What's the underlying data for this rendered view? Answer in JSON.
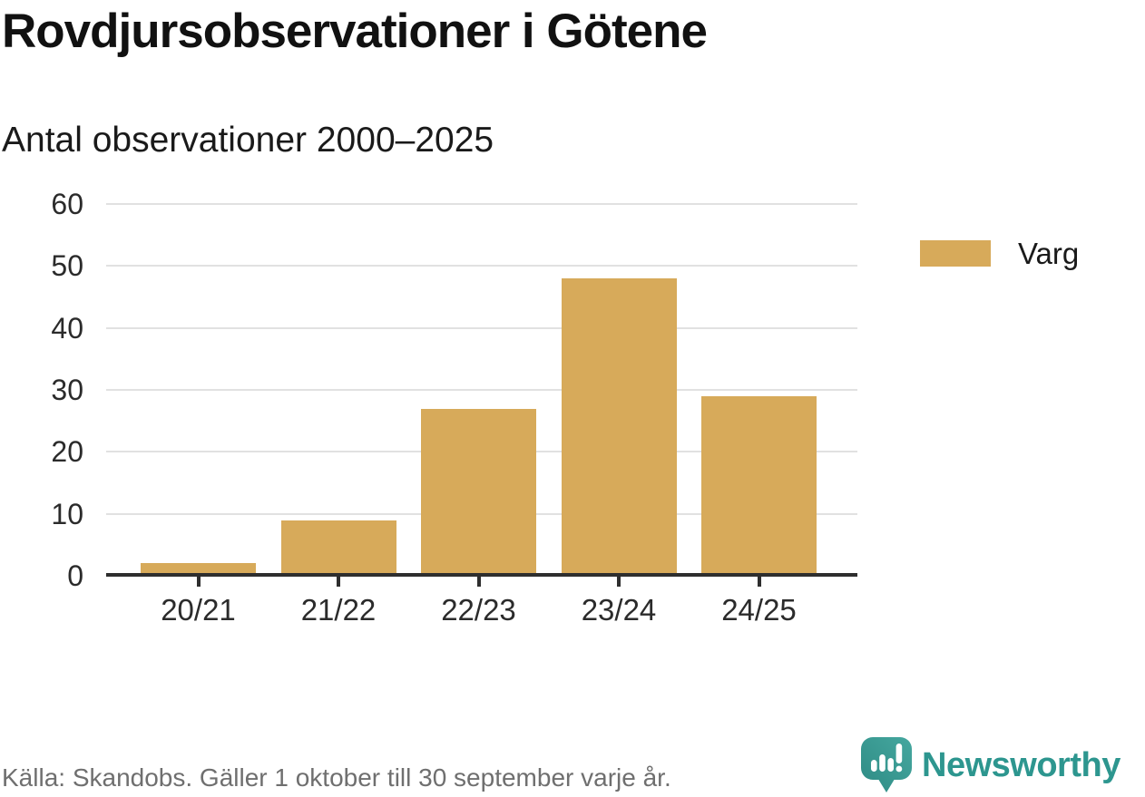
{
  "header": {
    "title": "Rovdjursobservationer i Götene",
    "subtitle": "Antal observationer 2000–2025"
  },
  "legend": {
    "label": "Varg"
  },
  "footer": {
    "source": "Källa: Skandobs. Gäller 1 oktober till 30 september varje år.",
    "brand": "Newsworthy"
  },
  "colors": {
    "bar": "#d7aa5a",
    "gridline": "#e1e1e1",
    "axis": "#2e2e2e",
    "brand_teal": "#2d968f",
    "brand_teal_light": "#45a79f",
    "brand_teal_dark": "#2e8b84",
    "footer_text": "#6f6f6f"
  },
  "chart_data": {
    "type": "bar",
    "title": "Rovdjursobservationer i Götene",
    "subtitle": "Antal observationer 2000–2025",
    "categories": [
      "20/21",
      "21/22",
      "22/23",
      "23/24",
      "24/25"
    ],
    "series": [
      {
        "name": "Varg",
        "color": "#d7aa5a",
        "values": [
          2,
          9,
          27,
          48,
          29
        ]
      }
    ],
    "xlabel": "",
    "ylabel": "Antal observationer",
    "ylim": [
      0,
      60
    ],
    "yticks": [
      0,
      10,
      20,
      30,
      40,
      50,
      60
    ],
    "grid": true,
    "legend_position": "right"
  }
}
